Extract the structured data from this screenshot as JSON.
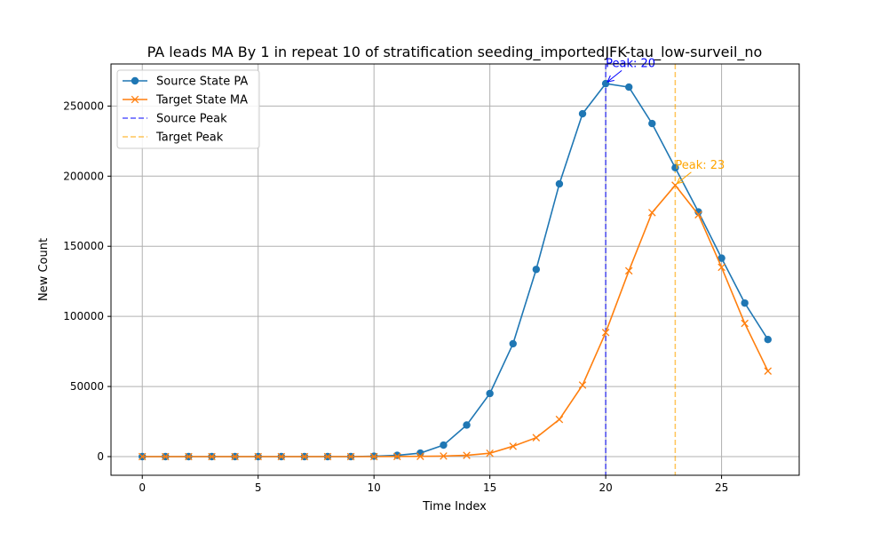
{
  "chart_data": {
    "type": "line",
    "title": "PA leads MA By 1 in repeat 10 of stratification seeding_importedJFK-tau_low-surveil_no",
    "xlabel": "Time Index",
    "ylabel": "New Count",
    "xlim": [
      -1.35,
      28.35
    ],
    "ylim": [
      -13300,
      280000
    ],
    "xticks": [
      0,
      5,
      10,
      15,
      20,
      25
    ],
    "yticks": [
      0,
      50000,
      100000,
      150000,
      200000,
      250000
    ],
    "grid": true,
    "legend_position": "top-left",
    "x": [
      0,
      1,
      2,
      3,
      4,
      5,
      6,
      7,
      8,
      9,
      10,
      11,
      12,
      13,
      14,
      15,
      16,
      17,
      18,
      19,
      20,
      21,
      22,
      23,
      24,
      25,
      26,
      27
    ],
    "series": [
      {
        "name": "Source State PA",
        "color": "#1f77b4",
        "marker": "circle",
        "values": [
          0,
          0,
          0,
          0,
          0,
          0,
          0,
          0,
          0,
          0,
          300,
          900,
          2500,
          8200,
          22500,
          45000,
          80500,
          133500,
          194500,
          244500,
          266000,
          263500,
          237500,
          206000,
          174500,
          141500,
          109500,
          83500
        ]
      },
      {
        "name": "Target State MA",
        "color": "#ff7f0e",
        "marker": "x",
        "values": [
          0,
          0,
          0,
          0,
          0,
          0,
          0,
          0,
          0,
          0,
          0,
          100,
          200,
          400,
          900,
          2400,
          7400,
          13500,
          26500,
          51000,
          88500,
          132500,
          174000,
          193500,
          172500,
          135000,
          95000,
          61000
        ]
      }
    ],
    "reference_lines": [
      {
        "name": "Source Peak",
        "x": 20,
        "color": "#0000ff",
        "style": "dashed"
      },
      {
        "name": "Target Peak",
        "x": 23,
        "color": "#ffa500",
        "style": "dashed"
      }
    ],
    "annotations": [
      {
        "text": "Peak: 20",
        "x": 20,
        "y": 266000,
        "text_x": 20,
        "text_y": 278500,
        "color": "#0000ff"
      },
      {
        "text": "Peak: 23",
        "x": 23,
        "y": 193500,
        "text_x": 23,
        "text_y": 206000,
        "color": "#ffa500"
      }
    ]
  }
}
